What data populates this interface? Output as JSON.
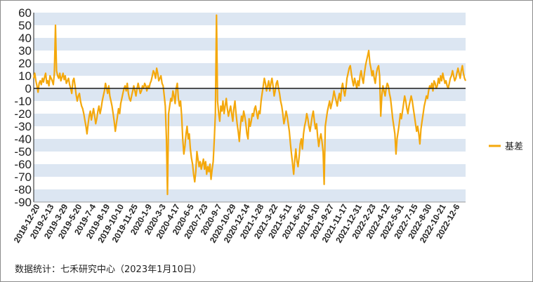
{
  "chart_data": {
    "type": "line",
    "y_ticks": [
      60,
      50,
      40,
      30,
      20,
      10,
      0,
      -10,
      -20,
      -30,
      -40,
      -50,
      -60,
      -70,
      -80,
      -90
    ],
    "ylim": [
      -90,
      60
    ],
    "x_tick_labels": [
      "2018-12-20",
      "2019-2-13",
      "2019-3-29",
      "2019-5-20",
      "2019-7-4",
      "2019-8-19",
      "2019-10-10",
      "2019-11-25",
      "2020-1-9",
      "2020-3-3",
      "2020-4-17",
      "2020-6-5",
      "2020-7-23",
      "2020-9-7",
      "2020-10-29",
      "2020-12-14",
      "2021-1-28",
      "2021-3-22",
      "2021-5-11",
      "2021-6-25",
      "2021-8-10",
      "2021-9-27",
      "2021-11-17",
      "2021-12-31",
      "2022-2-23",
      "2022-4-12",
      "2022-5-31",
      "2022-7-15",
      "2022-8-30",
      "2022-10-21",
      "2022-12-6"
    ],
    "grid": "horizontal bands",
    "legend_position": "right",
    "series": [
      {
        "name": "基差",
        "color": "#f4a80c",
        "values": [
          8,
          12,
          6,
          2,
          -3,
          4,
          6,
          3,
          8,
          5,
          9,
          12,
          4,
          6,
          2,
          10,
          8,
          6,
          3,
          12,
          50,
          14,
          10,
          8,
          12,
          6,
          9,
          12,
          7,
          10,
          4,
          6,
          8,
          3,
          0,
          -4,
          6,
          8,
          2,
          -5,
          -10,
          -6,
          -4,
          -10,
          -14,
          -16,
          -20,
          -25,
          -30,
          -36,
          -28,
          -22,
          -18,
          -25,
          -20,
          -16,
          -22,
          -28,
          -24,
          -18,
          -14,
          -20,
          -16,
          -10,
          -6,
          -2,
          4,
          0,
          -4,
          2,
          -6,
          -10,
          -14,
          -20,
          -26,
          -34,
          -28,
          -22,
          -16,
          -20,
          -12,
          -8,
          -4,
          0,
          2,
          -2,
          4,
          -4,
          -8,
          -10,
          -6,
          -2,
          2,
          -2,
          -6,
          0,
          4,
          0,
          -4,
          -2,
          2,
          0,
          4,
          2,
          -2,
          2,
          0,
          4,
          6,
          10,
          14,
          12,
          8,
          16,
          12,
          6,
          8,
          10,
          4,
          2,
          -6,
          -14,
          -40,
          -84,
          -20,
          -14,
          -8,
          -10,
          -2,
          -6,
          -12,
          0,
          4,
          -8,
          -14,
          -10,
          -22,
          -40,
          -52,
          -46,
          -36,
          -30,
          -40,
          -36,
          -48,
          -55,
          -60,
          -68,
          -74,
          -66,
          -50,
          -56,
          -62,
          -58,
          -64,
          -60,
          -56,
          -64,
          -58,
          -68,
          -62,
          -66,
          -60,
          -72,
          -64,
          -58,
          -40,
          -20,
          58,
          -10,
          -20,
          -26,
          -14,
          -18,
          -10,
          -20,
          -14,
          -8,
          -16,
          -22,
          -18,
          -14,
          -20,
          -26,
          -16,
          -10,
          -20,
          -28,
          -34,
          -42,
          -30,
          -22,
          -26,
          -18,
          -22,
          -28,
          -36,
          -40,
          -24,
          -30,
          -26,
          -20,
          -22,
          -16,
          -14,
          -20,
          -24,
          -18,
          -20,
          -10,
          -4,
          2,
          8,
          4,
          -2,
          2,
          6,
          -2,
          4,
          8,
          2,
          -6,
          -2,
          4,
          6,
          0,
          -4,
          -10,
          -14,
          -20,
          -28,
          -24,
          -18,
          -22,
          -28,
          -34,
          -44,
          -52,
          -60,
          -68,
          -56,
          -48,
          -58,
          -62,
          -54,
          -44,
          -40,
          -48,
          -36,
          -30,
          -26,
          -20,
          -24,
          -30,
          -34,
          -28,
          -22,
          -18,
          -26,
          -32,
          -28,
          -38,
          -46,
          -40,
          -36,
          -42,
          -50,
          -76,
          -30,
          -24,
          -18,
          -14,
          -10,
          -16,
          -12,
          -8,
          -2,
          -6,
          -10,
          -14,
          -8,
          -4,
          -10,
          0,
          4,
          -2,
          -6,
          0,
          8,
          12,
          16,
          18,
          12,
          6,
          2,
          8,
          4,
          0,
          6,
          2,
          10,
          14,
          8,
          4,
          12,
          18,
          22,
          26,
          30,
          20,
          16,
          10,
          14,
          8,
          4,
          12,
          16,
          18,
          10,
          -22,
          -6,
          2,
          -2,
          -6,
          0,
          4,
          2,
          -4,
          -8,
          -16,
          -24,
          -30,
          -36,
          -52,
          -40,
          -34,
          -28,
          -20,
          -24,
          -18,
          -12,
          -6,
          -10,
          -16,
          -20,
          -14,
          -10,
          -6,
          -10,
          -16,
          -22,
          -28,
          -34,
          -30,
          -36,
          -44,
          -32,
          -26,
          -20,
          -14,
          -10,
          -6,
          -8,
          -2,
          2,
          0,
          4,
          -2,
          6,
          4,
          0,
          2,
          8,
          4,
          10,
          6,
          12,
          8,
          4,
          6,
          2,
          0,
          4,
          8,
          10,
          14,
          10,
          6,
          8,
          12,
          16,
          12,
          8,
          14,
          18,
          12,
          8,
          6
        ]
      }
    ]
  },
  "source_note": "数据统计：七禾研究中心（2023年1月10日）"
}
